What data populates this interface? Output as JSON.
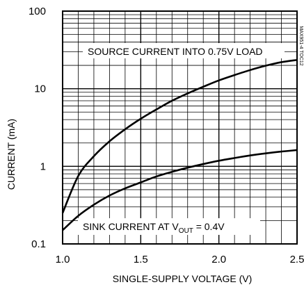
{
  "chart_data": {
    "type": "line",
    "x_scale": "linear",
    "y_scale": "log",
    "xlim": [
      1.0,
      2.5
    ],
    "ylim": [
      0.1,
      100
    ],
    "xlabel": "SINGLE-SUPPLY VOLTAGE (V)",
    "ylabel": "CURRENT (mA)",
    "x_ticks": [
      "1.0",
      "1.5",
      "2.0",
      "2.5"
    ],
    "y_ticks": [
      "0.1",
      "1",
      "10",
      "100"
    ],
    "grid": true,
    "figure_id": "MAX951-4 TOC12",
    "series": [
      {
        "name": "SOURCE CURRENT INTO 0.75V LOAD",
        "x": [
          1.0,
          1.1,
          1.2,
          1.3,
          1.4,
          1.5,
          1.6,
          1.7,
          1.8,
          1.9,
          2.0,
          2.1,
          2.2,
          2.3,
          2.4,
          2.5
        ],
        "y": [
          0.25,
          0.75,
          1.35,
          2.1,
          3.0,
          4.1,
          5.4,
          7.0,
          8.7,
          10.6,
          12.8,
          15.0,
          17.4,
          19.8,
          22.0,
          23.5
        ]
      },
      {
        "name": "SINK CURRENT AT VOUT = 0.4V",
        "x": [
          1.0,
          1.1,
          1.2,
          1.3,
          1.4,
          1.5,
          1.6,
          1.7,
          1.8,
          1.9,
          2.0,
          2.1,
          2.2,
          2.3,
          2.4,
          2.5
        ],
        "y": [
          0.15,
          0.23,
          0.32,
          0.42,
          0.52,
          0.62,
          0.74,
          0.85,
          0.96,
          1.07,
          1.18,
          1.28,
          1.38,
          1.47,
          1.55,
          1.62
        ]
      }
    ],
    "annotations": [
      {
        "prefix": "SOURCE CURRENT INTO 0.75V LOAD",
        "sub": "",
        "suffix": ""
      },
      {
        "prefix": "SINK CURRENT AT V",
        "sub": "OUT",
        "suffix": " = 0.4V"
      }
    ]
  }
}
